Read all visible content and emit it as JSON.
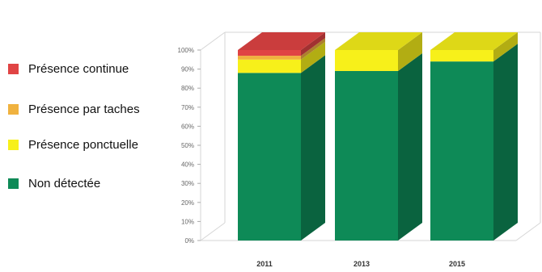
{
  "chart_data": {
    "type": "bar",
    "stacked": true,
    "style": "3d",
    "categories": [
      "2011",
      "2013",
      "2015"
    ],
    "series": [
      {
        "name": "Non détectée",
        "color": "#0e8a57",
        "values": [
          88,
          89,
          94
        ]
      },
      {
        "name": "Présence ponctuelle",
        "color": "#f7f01a",
        "values": [
          7,
          11,
          6
        ]
      },
      {
        "name": "Présence par taches",
        "color": "#f0b23f",
        "values": [
          2,
          0,
          0
        ]
      },
      {
        "name": "Présence continue",
        "color": "#e04444",
        "values": [
          3,
          0,
          0
        ]
      }
    ],
    "y_ticks": [
      "0%",
      "10%",
      "20%",
      "30%",
      "40%",
      "50%",
      "60%",
      "70%",
      "80%",
      "90%",
      "100%"
    ],
    "ylim": [
      0,
      100
    ],
    "grid": false,
    "legend_position": "left"
  },
  "legend": [
    {
      "label": "Présence continue",
      "color": "#e04444"
    },
    {
      "label": "Présence par taches",
      "color": "#f0b23f"
    },
    {
      "label": "Présence ponctuelle",
      "color": "#f7f01a"
    },
    {
      "label": "Non détectée",
      "color": "#0e8a57"
    }
  ]
}
